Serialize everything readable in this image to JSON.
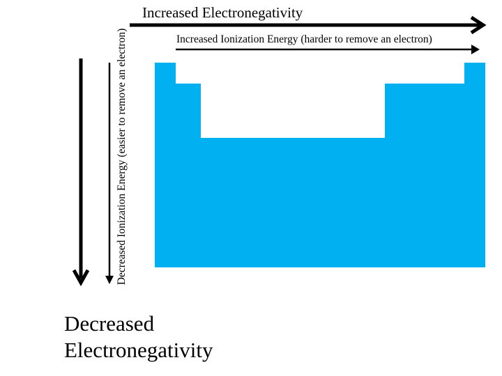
{
  "labels": {
    "increased_en": "Increased Electronegativity",
    "increased_ie": "Increased Ionization Energy (harder to remove an electron)",
    "decreased_ie": "Decreased Ionization Energy (easier to remove an electron)",
    "decreased_en_line1": "Decreased",
    "decreased_en_line2": "Electronegativity"
  },
  "colors": {
    "table_fill": "#00b0f0",
    "arrow": "#000000",
    "background": "#ffffff"
  },
  "icons": {
    "periodic_table": "periodic-table-silhouette",
    "arrows": [
      "arrow-right-icon",
      "arrow-down-icon"
    ]
  }
}
